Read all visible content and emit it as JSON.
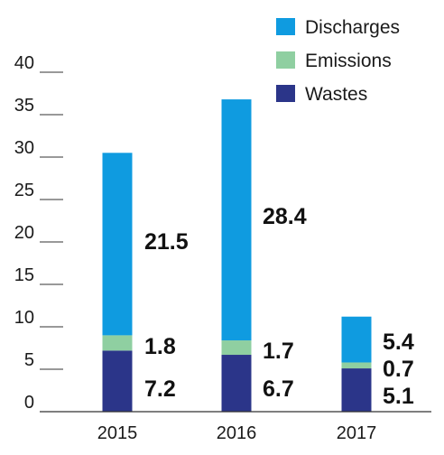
{
  "chart_data": {
    "type": "bar",
    "stacked": true,
    "categories": [
      "2015",
      "2016",
      "2017"
    ],
    "series": [
      {
        "name": "Wastes",
        "values": [
          7.2,
          6.7,
          5.1
        ],
        "color": "#2b3589"
      },
      {
        "name": "Emissions",
        "values": [
          1.8,
          1.7,
          0.7
        ],
        "color": "#8fcfa1"
      },
      {
        "name": "Discharges",
        "values": [
          21.5,
          28.4,
          5.4
        ],
        "color": "#0f9be0"
      }
    ],
    "legend_order": [
      "Discharges",
      "Emissions",
      "Wastes"
    ],
    "legend_position": "top-right",
    "yticks": [
      "0",
      "5",
      "10",
      "15",
      "20",
      "25",
      "30",
      "35",
      "40"
    ],
    "ylim": [
      0,
      40
    ],
    "grid": false
  }
}
